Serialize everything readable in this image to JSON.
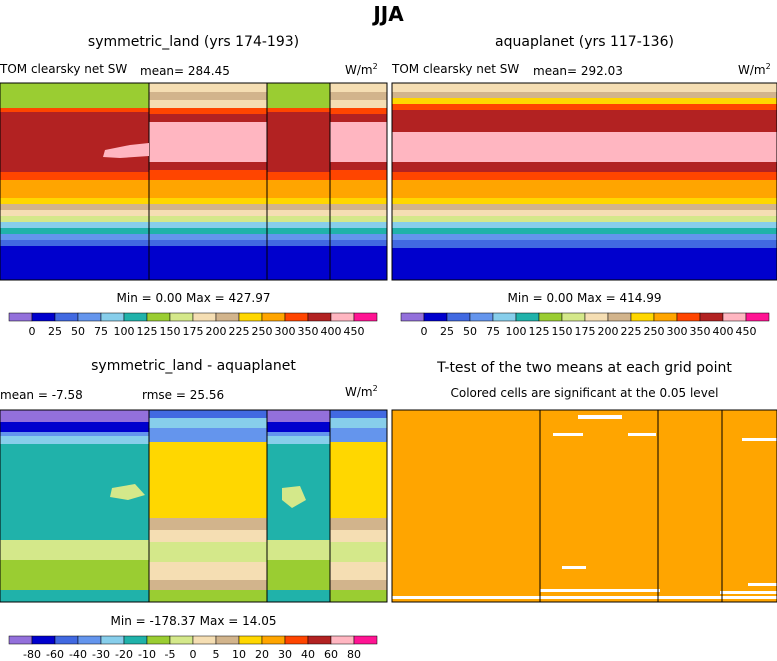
{
  "page_title": "JJA",
  "chart_data": [
    {
      "type": "heatmap",
      "title": "symmetric_land (yrs 174-193)",
      "left_label": "TOM clearsky net SW",
      "mean_label": "mean= 284.45",
      "units": "W/m",
      "units_sup": "2",
      "stats": "Min =    0.00 Max = 427.97",
      "colorbar_ticks": [
        "0",
        "25",
        "50",
        "75",
        "100",
        "125",
        "150",
        "175",
        "200",
        "225",
        "250",
        "300",
        "350",
        "400",
        "450"
      ]
    },
    {
      "type": "heatmap",
      "title": "aquaplanet (yrs 117-136)",
      "left_label": "TOM clearsky net SW",
      "mean_label": "mean= 292.03",
      "units": "W/m",
      "units_sup": "2",
      "stats": "Min =    0.00 Max = 414.99",
      "colorbar_ticks": [
        "0",
        "25",
        "50",
        "75",
        "100",
        "125",
        "150",
        "175",
        "200",
        "225",
        "250",
        "300",
        "350",
        "400",
        "450"
      ]
    },
    {
      "type": "heatmap",
      "title": "symmetric_land - aquaplanet",
      "mean_label": "mean =   -7.58",
      "rmse_label": "rmse =  25.56",
      "units": "W/m",
      "units_sup": "2",
      "stats": "Min = -178.37 Max =  14.05",
      "colorbar_ticks": [
        "-80",
        "-60",
        "-40",
        "-30",
        "-20",
        "-10",
        "-5",
        "0",
        "5",
        "10",
        "20",
        "30",
        "40",
        "60",
        "80"
      ]
    },
    {
      "type": "heatmap",
      "title": "T-test of the two means at each grid point",
      "subtitle": "Colored cells are significant at the 0.05 level"
    }
  ],
  "colors": {
    "sw_scale": [
      "#9370db",
      "#0000cd",
      "#4169e1",
      "#6495ed",
      "#87ceeb",
      "#20b2aa",
      "#9acd32",
      "#d4e88a",
      "#f5deb3",
      "#d2b48c",
      "#ffd700",
      "#ffa500",
      "#ff4500",
      "#b22222",
      "#ffb6c1",
      "#ff1493"
    ],
    "diff_scale": [
      "#9370db",
      "#0000cd",
      "#4169e1",
      "#6495ed",
      "#87ceeb",
      "#20b2aa",
      "#9acd32",
      "#d4e88a",
      "#f5deb3",
      "#d2b48c",
      "#ffd700",
      "#ffa500",
      "#ff4500",
      "#b22222",
      "#ffb6c1",
      "#ff1493"
    ],
    "ttest": "#ffa500"
  }
}
